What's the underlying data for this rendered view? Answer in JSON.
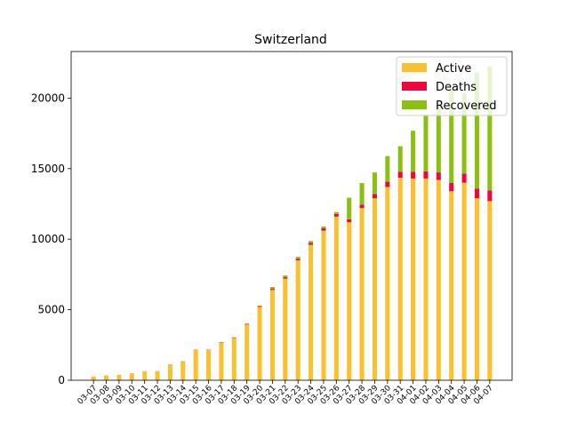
{
  "chart_data": {
    "type": "bar",
    "stacked": true,
    "title": "Switzerland",
    "xlabel": "",
    "ylabel": "",
    "ylim": [
      0,
      23300
    ],
    "yticks": [
      0,
      5000,
      10000,
      15000,
      20000
    ],
    "legend_position": "top-right",
    "grid": false,
    "categories": [
      "03-07",
      "03-08",
      "03-09",
      "03-10",
      "03-11",
      "03-12",
      "03-13",
      "03-14",
      "03-15",
      "03-16",
      "03-17",
      "03-18",
      "03-19",
      "03-20",
      "03-21",
      "03-22",
      "03-23",
      "03-24",
      "03-25",
      "03-26",
      "03-27",
      "03-28",
      "03-29",
      "03-30",
      "03-31",
      "04-01",
      "04-02",
      "04-03",
      "04-04",
      "04-05",
      "04-06",
      "04-07"
    ],
    "series": [
      {
        "name": "Active",
        "color": "#fbc02d",
        "values": [
          260,
          330,
          370,
          480,
          630,
          640,
          1100,
          1320,
          2150,
          2150,
          2650,
          3000,
          3950,
          5200,
          6400,
          7200,
          8500,
          9600,
          10600,
          11600,
          11200,
          12200,
          12900,
          13700,
          14350,
          14300,
          14300,
          14200,
          13400,
          14000,
          12900,
          12700
        ]
      },
      {
        "name": "Deaths",
        "color": "#f0053c",
        "values": [
          2,
          2,
          2,
          3,
          4,
          4,
          11,
          13,
          14,
          14,
          27,
          33,
          45,
          60,
          80,
          100,
          115,
          140,
          170,
          190,
          210,
          250,
          300,
          370,
          420,
          480,
          510,
          530,
          580,
          650,
          690,
          760
        ]
      },
      {
        "name": "Recovered",
        "color": "#8bc010",
        "values": [
          3,
          3,
          3,
          4,
          4,
          4,
          4,
          15,
          15,
          15,
          15,
          15,
          15,
          15,
          131,
          131,
          131,
          131,
          131,
          131,
          1530,
          1530,
          1530,
          1820,
          1820,
          2900,
          4000,
          4800,
          6700,
          5700,
          8200,
          8800
        ]
      }
    ]
  }
}
